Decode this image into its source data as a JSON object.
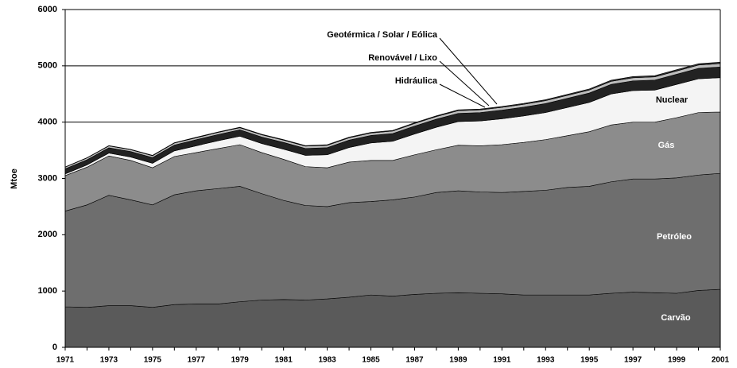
{
  "chart_data": {
    "type": "stacked-area",
    "y_label": "Mtoe",
    "x": [
      1971,
      1972,
      1973,
      1974,
      1975,
      1976,
      1977,
      1978,
      1979,
      1980,
      1981,
      1982,
      1983,
      1984,
      1985,
      1986,
      1987,
      1988,
      1989,
      1990,
      1991,
      1992,
      1993,
      1994,
      1995,
      1996,
      1997,
      1998,
      1999,
      2000,
      2001
    ],
    "xlim": [
      1971,
      2001
    ],
    "xticks": [
      1971,
      1973,
      1975,
      1977,
      1979,
      1981,
      1983,
      1985,
      1987,
      1989,
      1991,
      1993,
      1995,
      1997,
      1999,
      2001
    ],
    "ylim": [
      0,
      6000
    ],
    "yticks": [
      0,
      1000,
      2000,
      3000,
      4000,
      5000,
      6000
    ],
    "grid": true,
    "series": [
      {
        "name": "Carvão",
        "color": "#5a5a5a",
        "values": [
          720,
          710,
          740,
          740,
          710,
          760,
          770,
          770,
          810,
          840,
          850,
          840,
          860,
          890,
          930,
          910,
          940,
          960,
          970,
          960,
          950,
          930,
          930,
          930,
          930,
          960,
          980,
          970,
          960,
          1010,
          1030
        ]
      },
      {
        "name": "Petróleo",
        "color": "#6e6e6e",
        "values": [
          1700,
          1820,
          1960,
          1880,
          1820,
          1950,
          2010,
          2050,
          2050,
          1890,
          1760,
          1680,
          1640,
          1680,
          1660,
          1710,
          1730,
          1790,
          1810,
          1800,
          1800,
          1840,
          1860,
          1910,
          1930,
          1980,
          2010,
          2020,
          2050,
          2050,
          2060
        ]
      },
      {
        "name": "Gás",
        "color": "#8c8c8c",
        "values": [
          630,
          670,
          700,
          700,
          660,
          680,
          680,
          710,
          740,
          730,
          730,
          690,
          690,
          720,
          730,
          700,
          750,
          760,
          810,
          820,
          850,
          870,
          900,
          920,
          970,
          1010,
          1010,
          1010,
          1070,
          1110,
          1090
        ]
      },
      {
        "name": "Nuclear",
        "color": "#f4f4f4",
        "values": [
          30,
          40,
          50,
          60,
          80,
          100,
          120,
          140,
          150,
          160,
          180,
          200,
          230,
          260,
          310,
          340,
          370,
          400,
          420,
          440,
          460,
          470,
          480,
          500,
          520,
          550,
          560,
          570,
          590,
          600,
          610
        ]
      },
      {
        "name": "Hidráulica",
        "color": "#222222",
        "values": [
          90,
          92,
          95,
          98,
          100,
          103,
          107,
          110,
          113,
          116,
          120,
          123,
          126,
          130,
          133,
          137,
          140,
          143,
          146,
          150,
          153,
          157,
          160,
          163,
          167,
          170,
          173,
          177,
          180,
          185,
          190
        ]
      },
      {
        "name": "Renovável / Lixo",
        "color": "#bdbdbd",
        "values": [
          30,
          31,
          32,
          33,
          34,
          35,
          36,
          37,
          38,
          39,
          40,
          41,
          42,
          43,
          44,
          45,
          46,
          47,
          48,
          49,
          50,
          51,
          52,
          53,
          54,
          55,
          56,
          57,
          58,
          59,
          60
        ]
      },
      {
        "name": "Geotérmica / Solar / Eólica",
        "color": "#333333",
        "values": [
          5,
          5,
          6,
          6,
          7,
          7,
          8,
          8,
          9,
          9,
          10,
          10,
          11,
          11,
          12,
          12,
          13,
          13,
          14,
          14,
          15,
          16,
          17,
          18,
          19,
          20,
          21,
          22,
          23,
          24,
          25
        ]
      }
    ]
  }
}
